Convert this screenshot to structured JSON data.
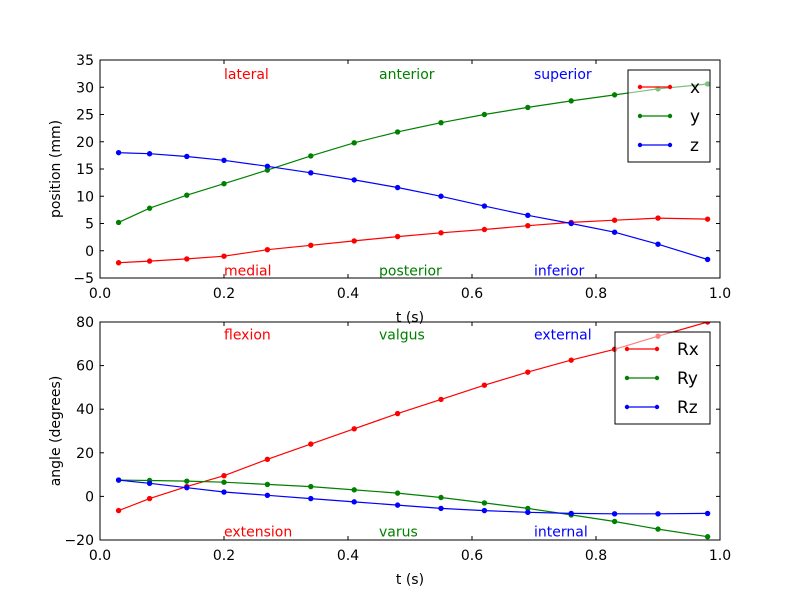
{
  "chart_data": [
    {
      "type": "line",
      "xlabel": "t (s)",
      "ylabel": "position (mm)",
      "xlim": [
        0.0,
        1.0
      ],
      "ylim": [
        -5,
        35
      ],
      "xticks": [
        "0.0",
        "0.2",
        "0.4",
        "0.6",
        "0.8",
        "1.0"
      ],
      "yticks": [
        "−5",
        "0",
        "5",
        "10",
        "15",
        "20",
        "25",
        "30",
        "35"
      ],
      "legend_position": "top-right",
      "series": [
        {
          "name": "x",
          "color": "#ff0000",
          "x": [
            0.03,
            0.08,
            0.14,
            0.2,
            0.27,
            0.34,
            0.41,
            0.48,
            0.55,
            0.62,
            0.69,
            0.76,
            0.83,
            0.9,
            0.98
          ],
          "y": [
            -2.2,
            -1.9,
            -1.5,
            -1.0,
            0.2,
            1.0,
            1.8,
            2.6,
            3.3,
            3.9,
            4.6,
            5.2,
            5.6,
            6.0,
            5.8
          ]
        },
        {
          "name": "y",
          "color": "#008000",
          "x": [
            0.03,
            0.08,
            0.14,
            0.2,
            0.27,
            0.34,
            0.41,
            0.48,
            0.55,
            0.62,
            0.69,
            0.76,
            0.83,
            0.9,
            0.98
          ],
          "y": [
            5.2,
            7.8,
            10.2,
            12.3,
            14.8,
            17.4,
            19.8,
            21.8,
            23.5,
            25.0,
            26.3,
            27.5,
            28.6,
            29.7,
            30.6
          ]
        },
        {
          "name": "z",
          "color": "#0000ff",
          "x": [
            0.03,
            0.08,
            0.14,
            0.2,
            0.27,
            0.34,
            0.41,
            0.48,
            0.55,
            0.62,
            0.69,
            0.76,
            0.83,
            0.9,
            0.98
          ],
          "y": [
            18.0,
            17.8,
            17.3,
            16.6,
            15.5,
            14.3,
            13.0,
            11.6,
            10.0,
            8.2,
            6.5,
            5.0,
            3.4,
            1.2,
            -1.6
          ]
        }
      ],
      "annotations": [
        {
          "text": "lateral",
          "x": 0.2,
          "y": 31.5,
          "color": "#ff0000"
        },
        {
          "text": "anterior",
          "x": 0.45,
          "y": 31.5,
          "color": "#008000"
        },
        {
          "text": "superior",
          "x": 0.7,
          "y": 31.5,
          "color": "#0000ff"
        },
        {
          "text": "medial",
          "x": 0.2,
          "y": -4.5,
          "color": "#ff0000"
        },
        {
          "text": "posterior",
          "x": 0.45,
          "y": -4.5,
          "color": "#008000"
        },
        {
          "text": "inferior",
          "x": 0.7,
          "y": -4.5,
          "color": "#0000ff"
        }
      ]
    },
    {
      "type": "line",
      "xlabel": "t (s)",
      "ylabel": "angle (degrees)",
      "xlim": [
        0.0,
        1.0
      ],
      "ylim": [
        -20,
        80
      ],
      "xticks": [
        "0.0",
        "0.2",
        "0.4",
        "0.6",
        "0.8",
        "1.0"
      ],
      "yticks": [
        "−20",
        "0",
        "20",
        "40",
        "60",
        "80"
      ],
      "legend_position": "top-right",
      "series": [
        {
          "name": "Rx",
          "color": "#ff0000",
          "x": [
            0.03,
            0.08,
            0.14,
            0.2,
            0.27,
            0.34,
            0.41,
            0.48,
            0.55,
            0.62,
            0.69,
            0.76,
            0.83,
            0.9,
            0.98
          ],
          "y": [
            -6.5,
            -1.0,
            4.5,
            9.5,
            17.0,
            24.0,
            31.0,
            38.0,
            44.5,
            51.0,
            57.0,
            62.5,
            67.5,
            73.5,
            80.0
          ]
        },
        {
          "name": "Ry",
          "color": "#008000",
          "x": [
            0.03,
            0.08,
            0.14,
            0.2,
            0.27,
            0.34,
            0.41,
            0.48,
            0.55,
            0.62,
            0.69,
            0.76,
            0.83,
            0.9,
            0.98
          ],
          "y": [
            7.5,
            7.3,
            7.0,
            6.5,
            5.5,
            4.5,
            3.0,
            1.5,
            -0.5,
            -3.0,
            -5.5,
            -8.5,
            -11.5,
            -15.0,
            -18.5
          ]
        },
        {
          "name": "Rz",
          "color": "#0000ff",
          "x": [
            0.03,
            0.08,
            0.14,
            0.2,
            0.27,
            0.34,
            0.41,
            0.48,
            0.55,
            0.62,
            0.69,
            0.76,
            0.83,
            0.9,
            0.98
          ],
          "y": [
            7.5,
            6.0,
            4.0,
            2.0,
            0.5,
            -1.0,
            -2.5,
            -4.0,
            -5.5,
            -6.5,
            -7.3,
            -7.8,
            -8.0,
            -8.0,
            -7.8
          ]
        }
      ],
      "annotations": [
        {
          "text": "flexion",
          "x": 0.2,
          "y": 72,
          "color": "#ff0000"
        },
        {
          "text": "valgus",
          "x": 0.45,
          "y": 72,
          "color": "#008000"
        },
        {
          "text": "external",
          "x": 0.7,
          "y": 72,
          "color": "#0000ff"
        },
        {
          "text": "extension",
          "x": 0.2,
          "y": -18.5,
          "color": "#ff0000"
        },
        {
          "text": "varus",
          "x": 0.45,
          "y": -18.5,
          "color": "#008000"
        },
        {
          "text": "internal",
          "x": 0.7,
          "y": -18.5,
          "color": "#0000ff"
        }
      ]
    }
  ]
}
